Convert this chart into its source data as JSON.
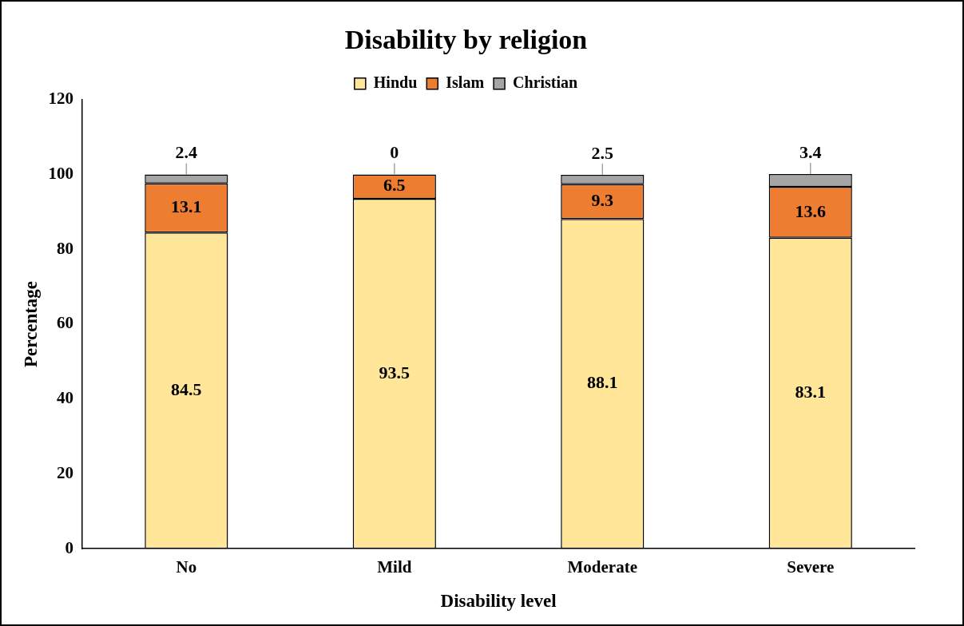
{
  "chart_data": {
    "type": "bar",
    "title": "Disability by religion",
    "xlabel": "Disability level",
    "ylabel": "Percentage",
    "categories": [
      "No",
      "Mild",
      "Moderate",
      "Severe"
    ],
    "series": [
      {
        "name": "Hindu",
        "color": "#ffe699",
        "values": [
          84.5,
          93.5,
          88.1,
          83.1
        ]
      },
      {
        "name": "Islam",
        "color": "#ed7d31",
        "values": [
          13.1,
          6.5,
          9.3,
          13.6
        ]
      },
      {
        "name": "Christian",
        "color": "#a5a5a5",
        "values": [
          2.4,
          0,
          2.5,
          3.4
        ]
      }
    ],
    "stacked": true,
    "ylim": [
      0,
      120
    ],
    "yticks": [
      0,
      20,
      40,
      60,
      80,
      100,
      120
    ],
    "grid": false,
    "legend": "top",
    "data_labels": true
  }
}
